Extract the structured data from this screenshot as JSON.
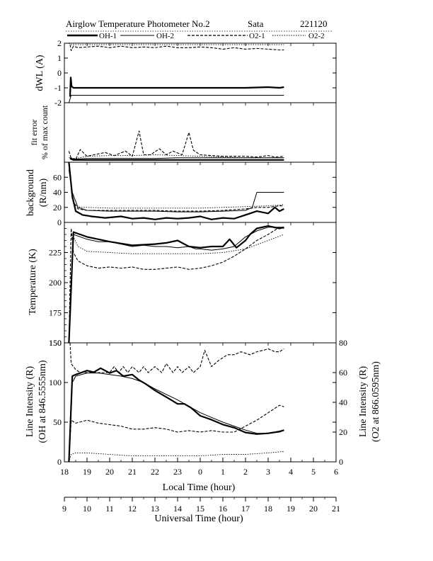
{
  "header": {
    "title": "Airglow Temperature Photometer No.2",
    "site": "Sata",
    "date": "221120"
  },
  "legend": [
    {
      "name": "OH-1",
      "style": "solid-thick"
    },
    {
      "name": "OH-2",
      "style": "solid-thin"
    },
    {
      "name": "O2-1",
      "style": "dashed"
    },
    {
      "name": "O2-2",
      "style": "dotted"
    }
  ],
  "colors": {
    "ink": "#000000",
    "background": "#ffffff"
  },
  "chart_data": [
    {
      "type": "line",
      "panel": "dwl",
      "ylabel": "dWL (A)",
      "ylim": [
        -2,
        2
      ],
      "yticks": [
        -2,
        -1,
        0,
        1,
        2
      ],
      "x_unit": "local time (hour)",
      "series": [
        {
          "name": "OH-1",
          "style": "solid-thick",
          "x": [
            18.25,
            18.28,
            18.32,
            18.4,
            19,
            20,
            21,
            22,
            23,
            24,
            25,
            26,
            27,
            27.5,
            27.7
          ],
          "y": [
            -1.6,
            -0.3,
            -0.9,
            -1.0,
            -1.0,
            -1.0,
            -1.0,
            -1.0,
            -1.0,
            -1.0,
            -1.0,
            -1.0,
            -0.95,
            -1.0,
            -0.95
          ]
        },
        {
          "name": "OH-2",
          "style": "solid-thin",
          "x": [
            18.2,
            18.3,
            18.4,
            19,
            20,
            21,
            22,
            23,
            24,
            25,
            26,
            27,
            27.7
          ],
          "y": [
            -2.0,
            -1.5,
            -1.5,
            -1.5,
            -1.5,
            -1.5,
            -1.5,
            -1.5,
            -1.5,
            -1.5,
            -1.5,
            -1.5,
            -1.5
          ]
        },
        {
          "name": "O2-1",
          "style": "dashed",
          "x": [
            18.25,
            18.3,
            18.4,
            18.6,
            19,
            19.5,
            20,
            20.5,
            21,
            21.5,
            22,
            22.5,
            23,
            23.5,
            24,
            24.5,
            25,
            25.5,
            26,
            26.5,
            27,
            27.5,
            27.7
          ],
          "y": [
            1.9,
            1.5,
            1.8,
            1.7,
            1.75,
            1.8,
            1.7,
            1.8,
            1.7,
            1.75,
            1.7,
            1.8,
            1.7,
            1.7,
            1.75,
            1.7,
            1.6,
            1.7,
            1.6,
            1.65,
            1.6,
            1.55,
            1.55
          ]
        },
        {
          "name": "O2-2",
          "style": "dotted",
          "x": [
            18.2,
            18.3,
            18.5,
            19,
            20,
            21,
            22,
            23,
            24,
            25,
            26,
            27,
            27.7
          ],
          "y": [
            2.0,
            1.9,
            1.9,
            1.9,
            1.9,
            1.9,
            1.9,
            1.9,
            1.9,
            1.9,
            1.9,
            1.9,
            1.9
          ]
        }
      ]
    },
    {
      "type": "line",
      "panel": "fit_error",
      "ylabel": "fit error",
      "ylabel2": "% of max count",
      "ylim": [
        0,
        8
      ],
      "yticks": [],
      "series": [
        {
          "name": "OH-1",
          "style": "solid-thick",
          "x": [
            18.25,
            18.4,
            19,
            20,
            21,
            22,
            23,
            24,
            25,
            26,
            27,
            27.7
          ],
          "y": [
            0.5,
            0.3,
            0.3,
            0.3,
            0.3,
            0.3,
            0.3,
            0.3,
            0.3,
            0.3,
            0.3,
            0.3
          ]
        },
        {
          "name": "OH-2",
          "style": "solid-thin",
          "x": [
            18.25,
            18.4,
            19,
            20,
            21,
            22,
            23,
            24,
            25,
            26,
            27,
            27.7
          ],
          "y": [
            0.6,
            0.4,
            0.5,
            0.5,
            0.5,
            0.5,
            0.6,
            0.6,
            0.6,
            0.6,
            0.6,
            0.6
          ]
        },
        {
          "name": "O2-1",
          "style": "dashed",
          "x": [
            18.2,
            18.3,
            18.5,
            18.7,
            19,
            19.3,
            19.8,
            20.2,
            20.7,
            21,
            21.3,
            21.5,
            21.8,
            22.2,
            22.5,
            22.8,
            23.2,
            23.5,
            23.7,
            24,
            24.5,
            25,
            25.5,
            26,
            26.5,
            27,
            27.3,
            27.7
          ],
          "y": [
            1.5,
            0.5,
            0.4,
            1.7,
            0.8,
            1.0,
            1.3,
            0.9,
            1.5,
            0.8,
            4.2,
            1.0,
            1.0,
            1.8,
            1.0,
            1.5,
            1.0,
            4.0,
            1.6,
            1.0,
            0.9,
            0.8,
            0.8,
            0.8,
            0.7,
            0.9,
            0.7,
            0.8
          ]
        },
        {
          "name": "O2-2",
          "style": "dotted",
          "x": [
            18.2,
            18.5,
            19,
            20,
            21,
            22,
            23,
            24,
            25,
            26,
            27,
            27.7
          ],
          "y": [
            0.6,
            0.5,
            0.8,
            0.9,
            0.9,
            1.0,
            0.9,
            0.8,
            0.7,
            0.6,
            0.6,
            0.6
          ]
        }
      ]
    },
    {
      "type": "line",
      "panel": "background",
      "ylabel": "background",
      "ylabel2": "(R/nm)",
      "ylim": [
        0,
        80
      ],
      "yticks": [
        0,
        20,
        40,
        60
      ],
      "series": [
        {
          "name": "OH-1",
          "style": "solid-thick",
          "x": [
            18.2,
            18.35,
            18.5,
            18.8,
            19.2,
            19.8,
            20.5,
            21,
            21.5,
            22,
            22.5,
            23,
            23.5,
            24,
            24.5,
            25,
            25.5,
            26,
            26.5,
            27,
            27.3,
            27.5,
            27.7
          ],
          "y": [
            80,
            35,
            15,
            10,
            8,
            6,
            8,
            5,
            6,
            4,
            6,
            5,
            6,
            8,
            4,
            6,
            5,
            10,
            15,
            12,
            20,
            15,
            18
          ]
        },
        {
          "name": "OH-2",
          "style": "solid-thin",
          "x": [
            18.2,
            18.35,
            18.6,
            19,
            20,
            21,
            22,
            23,
            24,
            25,
            26,
            26.3,
            26.5,
            27,
            27.5,
            27.7
          ],
          "y": [
            70,
            40,
            20,
            16,
            15,
            15,
            15,
            14,
            14,
            15,
            16,
            20,
            40,
            40,
            40,
            40
          ]
        },
        {
          "name": "O2-1",
          "style": "dashed",
          "x": [
            18.2,
            18.35,
            18.6,
            19,
            20,
            21,
            22,
            23,
            24,
            25,
            25.5,
            26,
            26.5,
            27,
            27.5,
            27.7
          ],
          "y": [
            80,
            30,
            18,
            16,
            16,
            16,
            16,
            15,
            15,
            16,
            17,
            18,
            20,
            20,
            22,
            22
          ]
        },
        {
          "name": "O2-2",
          "style": "dotted",
          "x": [
            18.2,
            18.4,
            18.7,
            19,
            20,
            21,
            22,
            23,
            24,
            25,
            26,
            27,
            27.5,
            27.7
          ],
          "y": [
            75,
            25,
            20,
            20,
            19,
            19,
            19,
            19,
            19,
            20,
            21,
            22,
            23,
            24
          ]
        }
      ]
    },
    {
      "type": "line",
      "panel": "temperature",
      "ylabel": "Temperature (K)",
      "ylim": [
        150,
        250
      ],
      "yticks": [
        150,
        175,
        200,
        225
      ],
      "series": [
        {
          "name": "OH-1",
          "style": "solid-thick",
          "x": [
            18.2,
            18.4,
            19,
            19.5,
            20,
            21,
            22,
            22.5,
            23,
            23.5,
            24,
            24.5,
            25,
            25.3,
            25.6,
            26,
            26.2,
            26.5,
            27,
            27.5,
            27.7
          ],
          "y": [
            150,
            242,
            238,
            236,
            234,
            231,
            232,
            233,
            235,
            230,
            229,
            230,
            230,
            236,
            229,
            235,
            240,
            245,
            247,
            245,
            246
          ]
        },
        {
          "name": "OH-2",
          "style": "solid-thin",
          "x": [
            18.2,
            18.4,
            19,
            19.5,
            20,
            20.5,
            21,
            21.5,
            22,
            22.5,
            23,
            23.5,
            23.8,
            24,
            24.5,
            25,
            25.5,
            26,
            26.5,
            27,
            27.5,
            27.7
          ],
          "y": [
            150,
            240,
            236,
            234,
            234,
            232,
            230,
            231,
            230,
            230,
            229,
            230,
            228,
            228,
            227,
            228,
            230,
            238,
            243,
            246,
            246,
            246
          ]
        },
        {
          "name": "O2-1",
          "style": "dashed",
          "x": [
            18.2,
            18.3,
            18.4,
            18.6,
            19,
            19.5,
            20,
            20.5,
            21,
            21.5,
            22,
            22.5,
            23,
            23.5,
            24,
            24.5,
            25,
            25.5,
            26,
            26.5,
            27,
            27.5,
            27.7
          ],
          "y": [
            150,
            245,
            225,
            218,
            214,
            212,
            213,
            212,
            213,
            211,
            211,
            212,
            213,
            211,
            212,
            214,
            217,
            222,
            228,
            235,
            240,
            246,
            245
          ]
        },
        {
          "name": "O2-2",
          "style": "dotted",
          "x": [
            18.2,
            18.4,
            18.6,
            19,
            20,
            21,
            22,
            23,
            24,
            25,
            26,
            27,
            27.7
          ],
          "y": [
            150,
            238,
            230,
            226,
            225,
            224,
            224,
            224,
            224,
            225,
            228,
            235,
            240
          ]
        }
      ]
    },
    {
      "type": "line",
      "panel": "intensity",
      "ylabel": "Line Intensity (R)",
      "ylabel2": "(OH at 846.5555nm)",
      "ylabel_right": "Line Intensity (R)",
      "ylabel_right2": "(O2 at 866.0595nm)",
      "ylim": [
        0,
        150
      ],
      "yticks": [
        0,
        50,
        100,
        150
      ],
      "ylim_right": [
        0,
        80
      ],
      "yticks_right": [
        0,
        20,
        40,
        60,
        80
      ],
      "series": [
        {
          "name": "OH-1",
          "axis": "left",
          "style": "solid-thick",
          "x": [
            18.2,
            18.35,
            18.5,
            19,
            19.3,
            19.6,
            20,
            20.3,
            20.6,
            21,
            21.3,
            21.6,
            22,
            22.3,
            22.6,
            23,
            23.3,
            23.6,
            24,
            24.5,
            25,
            25.5,
            26,
            26.5,
            27,
            27.5,
            27.7
          ],
          "y": [
            0,
            108,
            110,
            115,
            113,
            118,
            112,
            115,
            108,
            110,
            103,
            98,
            90,
            85,
            80,
            73,
            73,
            68,
            58,
            53,
            47,
            43,
            37,
            35,
            36,
            38,
            40
          ]
        },
        {
          "name": "OH-2",
          "axis": "left",
          "style": "solid-thin",
          "x": [
            18.2,
            18.35,
            18.5,
            19,
            19.5,
            20,
            20.5,
            21,
            21.5,
            22,
            22.5,
            23,
            23.5,
            24,
            24.5,
            25,
            25.5,
            26,
            26.5,
            27,
            27.7
          ],
          "y": [
            0,
            100,
            108,
            112,
            112,
            110,
            108,
            105,
            100,
            92,
            85,
            78,
            70,
            62,
            56,
            50,
            45,
            40,
            36,
            36,
            40
          ]
        },
        {
          "name": "O2-1",
          "axis": "right",
          "style": "dashed",
          "x": [
            18.2,
            18.3,
            18.5,
            19,
            19.5,
            20,
            20.5,
            21,
            21.5,
            22,
            22.5,
            23,
            23.5,
            24,
            24.5,
            25,
            25.5,
            26,
            26.5,
            27,
            27.5,
            27.7
          ],
          "y": [
            0,
            28,
            26,
            28,
            26,
            25,
            24,
            22,
            22,
            23,
            22,
            20,
            21,
            20,
            21,
            20,
            20,
            24,
            28,
            33,
            38,
            37
          ]
        },
        {
          "name": "O2-2",
          "axis": "right",
          "style": "dotted",
          "x": [
            18.2,
            18.3,
            18.5,
            19,
            20,
            21,
            22,
            23,
            24,
            25,
            26,
            27,
            27.7
          ],
          "y": [
            0,
            5,
            6,
            6,
            5,
            4,
            4,
            4,
            4,
            5,
            5,
            6,
            7
          ]
        }
      ]
    },
    {
      "type": "line",
      "panel": "intensity_top_strip",
      "note": "O2-1 intensity trace drawn above the 150 gridline on the right axis",
      "series": [
        {
          "name": "O2-1",
          "axis": "right",
          "style": "dashed",
          "x": [
            18.25,
            18.3,
            18.5,
            18.7,
            19,
            19.5,
            20,
            20.2,
            20.4,
            20.6,
            20.8,
            21,
            21.3,
            21.5,
            21.7,
            22,
            22.3,
            22.5,
            22.8,
            23,
            23.2,
            23.5,
            23.7,
            24,
            24.2,
            24.5,
            24.8,
            25,
            25.2,
            25.5,
            25.8,
            26,
            26.2,
            26.5,
            26.8,
            27,
            27.3,
            27.5,
            27.7
          ],
          "y": [
            80,
            66,
            62,
            60,
            60,
            60,
            60,
            64,
            60,
            64,
            60,
            64,
            60,
            64,
            60,
            64,
            60,
            66,
            60,
            64,
            60,
            64,
            60,
            64,
            75,
            64,
            68,
            70,
            72,
            72,
            74,
            73,
            72,
            74,
            75,
            76,
            74,
            74,
            76
          ]
        }
      ]
    }
  ],
  "x_axes": {
    "local": {
      "label": "Local Time (hour)",
      "ticks": [
        "18",
        "19",
        "20",
        "21",
        "22",
        "23",
        "0",
        "1",
        "2",
        "3",
        "4",
        "5",
        "6"
      ],
      "range": [
        18,
        30
      ]
    },
    "universal": {
      "label": "Universal Time (hour)",
      "ticks": [
        "9",
        "10",
        "11",
        "12",
        "13",
        "14",
        "15",
        "16",
        "17",
        "18",
        "19",
        "20",
        "21"
      ],
      "range": [
        9,
        21
      ]
    }
  },
  "panel_tick_labels": {
    "dwl": [
      "2",
      "1",
      "0",
      "-1",
      "-2"
    ],
    "background": [
      "60",
      "40",
      "20",
      "0"
    ],
    "temperature": [
      "225",
      "200",
      "175",
      "150"
    ],
    "intensity": [
      "150",
      "100",
      "50",
      "0"
    ],
    "intensity_right": [
      "80",
      "60",
      "40",
      "20",
      "0"
    ]
  }
}
